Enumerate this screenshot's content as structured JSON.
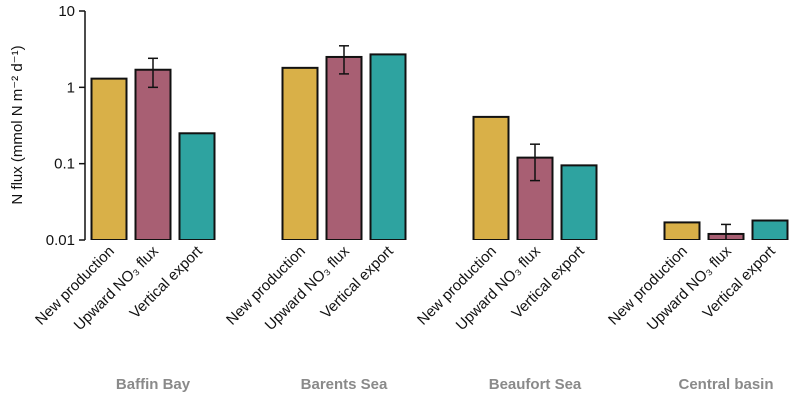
{
  "chart_data": {
    "type": "bar",
    "ylabel": "N flux (mmol N m⁻² d⁻¹)",
    "log_scale": true,
    "ylim": [
      0.01,
      10
    ],
    "yticks": [
      0.01,
      0.1,
      1,
      10
    ],
    "categories": [
      "Baffin Bay",
      "Barents Sea",
      "Beaufort Sea",
      "Central basin"
    ],
    "series": [
      {
        "name": "New production",
        "color": "#d9b048",
        "values": [
          1.3,
          1.8,
          0.41,
          0.017
        ]
      },
      {
        "name": "Upward NO₃ flux",
        "color": "#a85f73",
        "values": [
          1.7,
          2.5,
          0.12,
          0.012
        ],
        "errors": [
          0.7,
          1.0,
          0.06,
          0.004
        ]
      },
      {
        "name": "Vertical export",
        "color": "#2ea3a0",
        "values": [
          0.25,
          2.7,
          0.095,
          0.018
        ]
      }
    ]
  }
}
